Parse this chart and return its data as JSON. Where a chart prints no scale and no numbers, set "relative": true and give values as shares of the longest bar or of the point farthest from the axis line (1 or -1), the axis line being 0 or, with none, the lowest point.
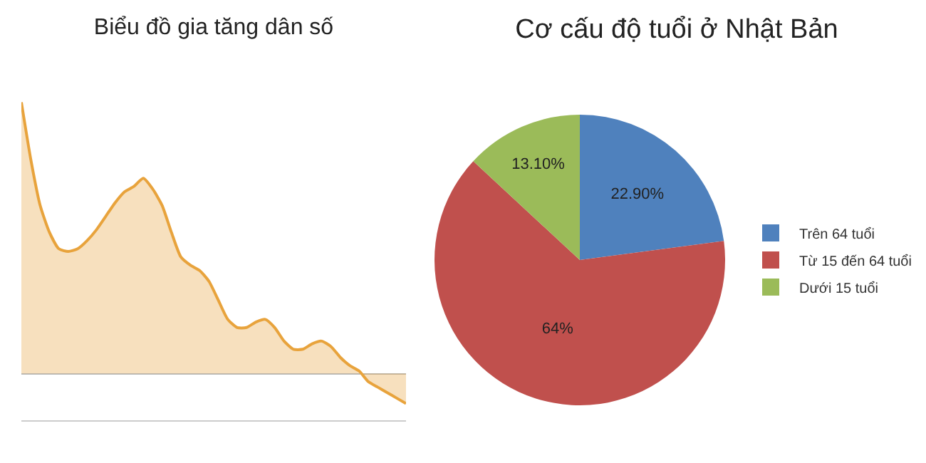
{
  "chart_data": [
    {
      "type": "area",
      "title": "Biểu đồ gia tăng dân số",
      "relative": true,
      "color": "#e8a33c",
      "categories": [
        null,
        null,
        null,
        null,
        null,
        null,
        null,
        null,
        null,
        null,
        null,
        null,
        null,
        null,
        null,
        null,
        null,
        null,
        null,
        null,
        null,
        null,
        null,
        null,
        null,
        null,
        null,
        null,
        null,
        null,
        null,
        null,
        null,
        null,
        null,
        null,
        null,
        null,
        null,
        null,
        null,
        null
      ],
      "values": [
        1.0,
        0.79,
        0.62,
        0.52,
        0.46,
        0.45,
        0.46,
        0.49,
        0.53,
        0.58,
        0.63,
        0.67,
        0.69,
        0.72,
        0.68,
        0.62,
        0.52,
        0.43,
        0.4,
        0.38,
        0.34,
        0.27,
        0.2,
        0.17,
        0.17,
        0.19,
        0.2,
        0.17,
        0.12,
        0.09,
        0.09,
        0.11,
        0.12,
        0.1,
        0.06,
        0.03,
        0.01,
        -0.03,
        -0.05,
        -0.07,
        -0.09,
        -0.11
      ]
    },
    {
      "type": "pie",
      "title": "Cơ cấu độ tuổi ở Nhật Bản",
      "legend": "right",
      "categories": [
        "Trên 64 tuổi",
        "Từ 15 đến 64 tuổi",
        "Dưới 15 tuổi"
      ],
      "values": [
        22.9,
        64,
        13.1
      ],
      "colors": [
        "#4f81bd",
        "#c0504d",
        "#9bbb59"
      ],
      "value_labels": [
        "22.90%",
        "64%",
        "13.10%"
      ]
    }
  ]
}
